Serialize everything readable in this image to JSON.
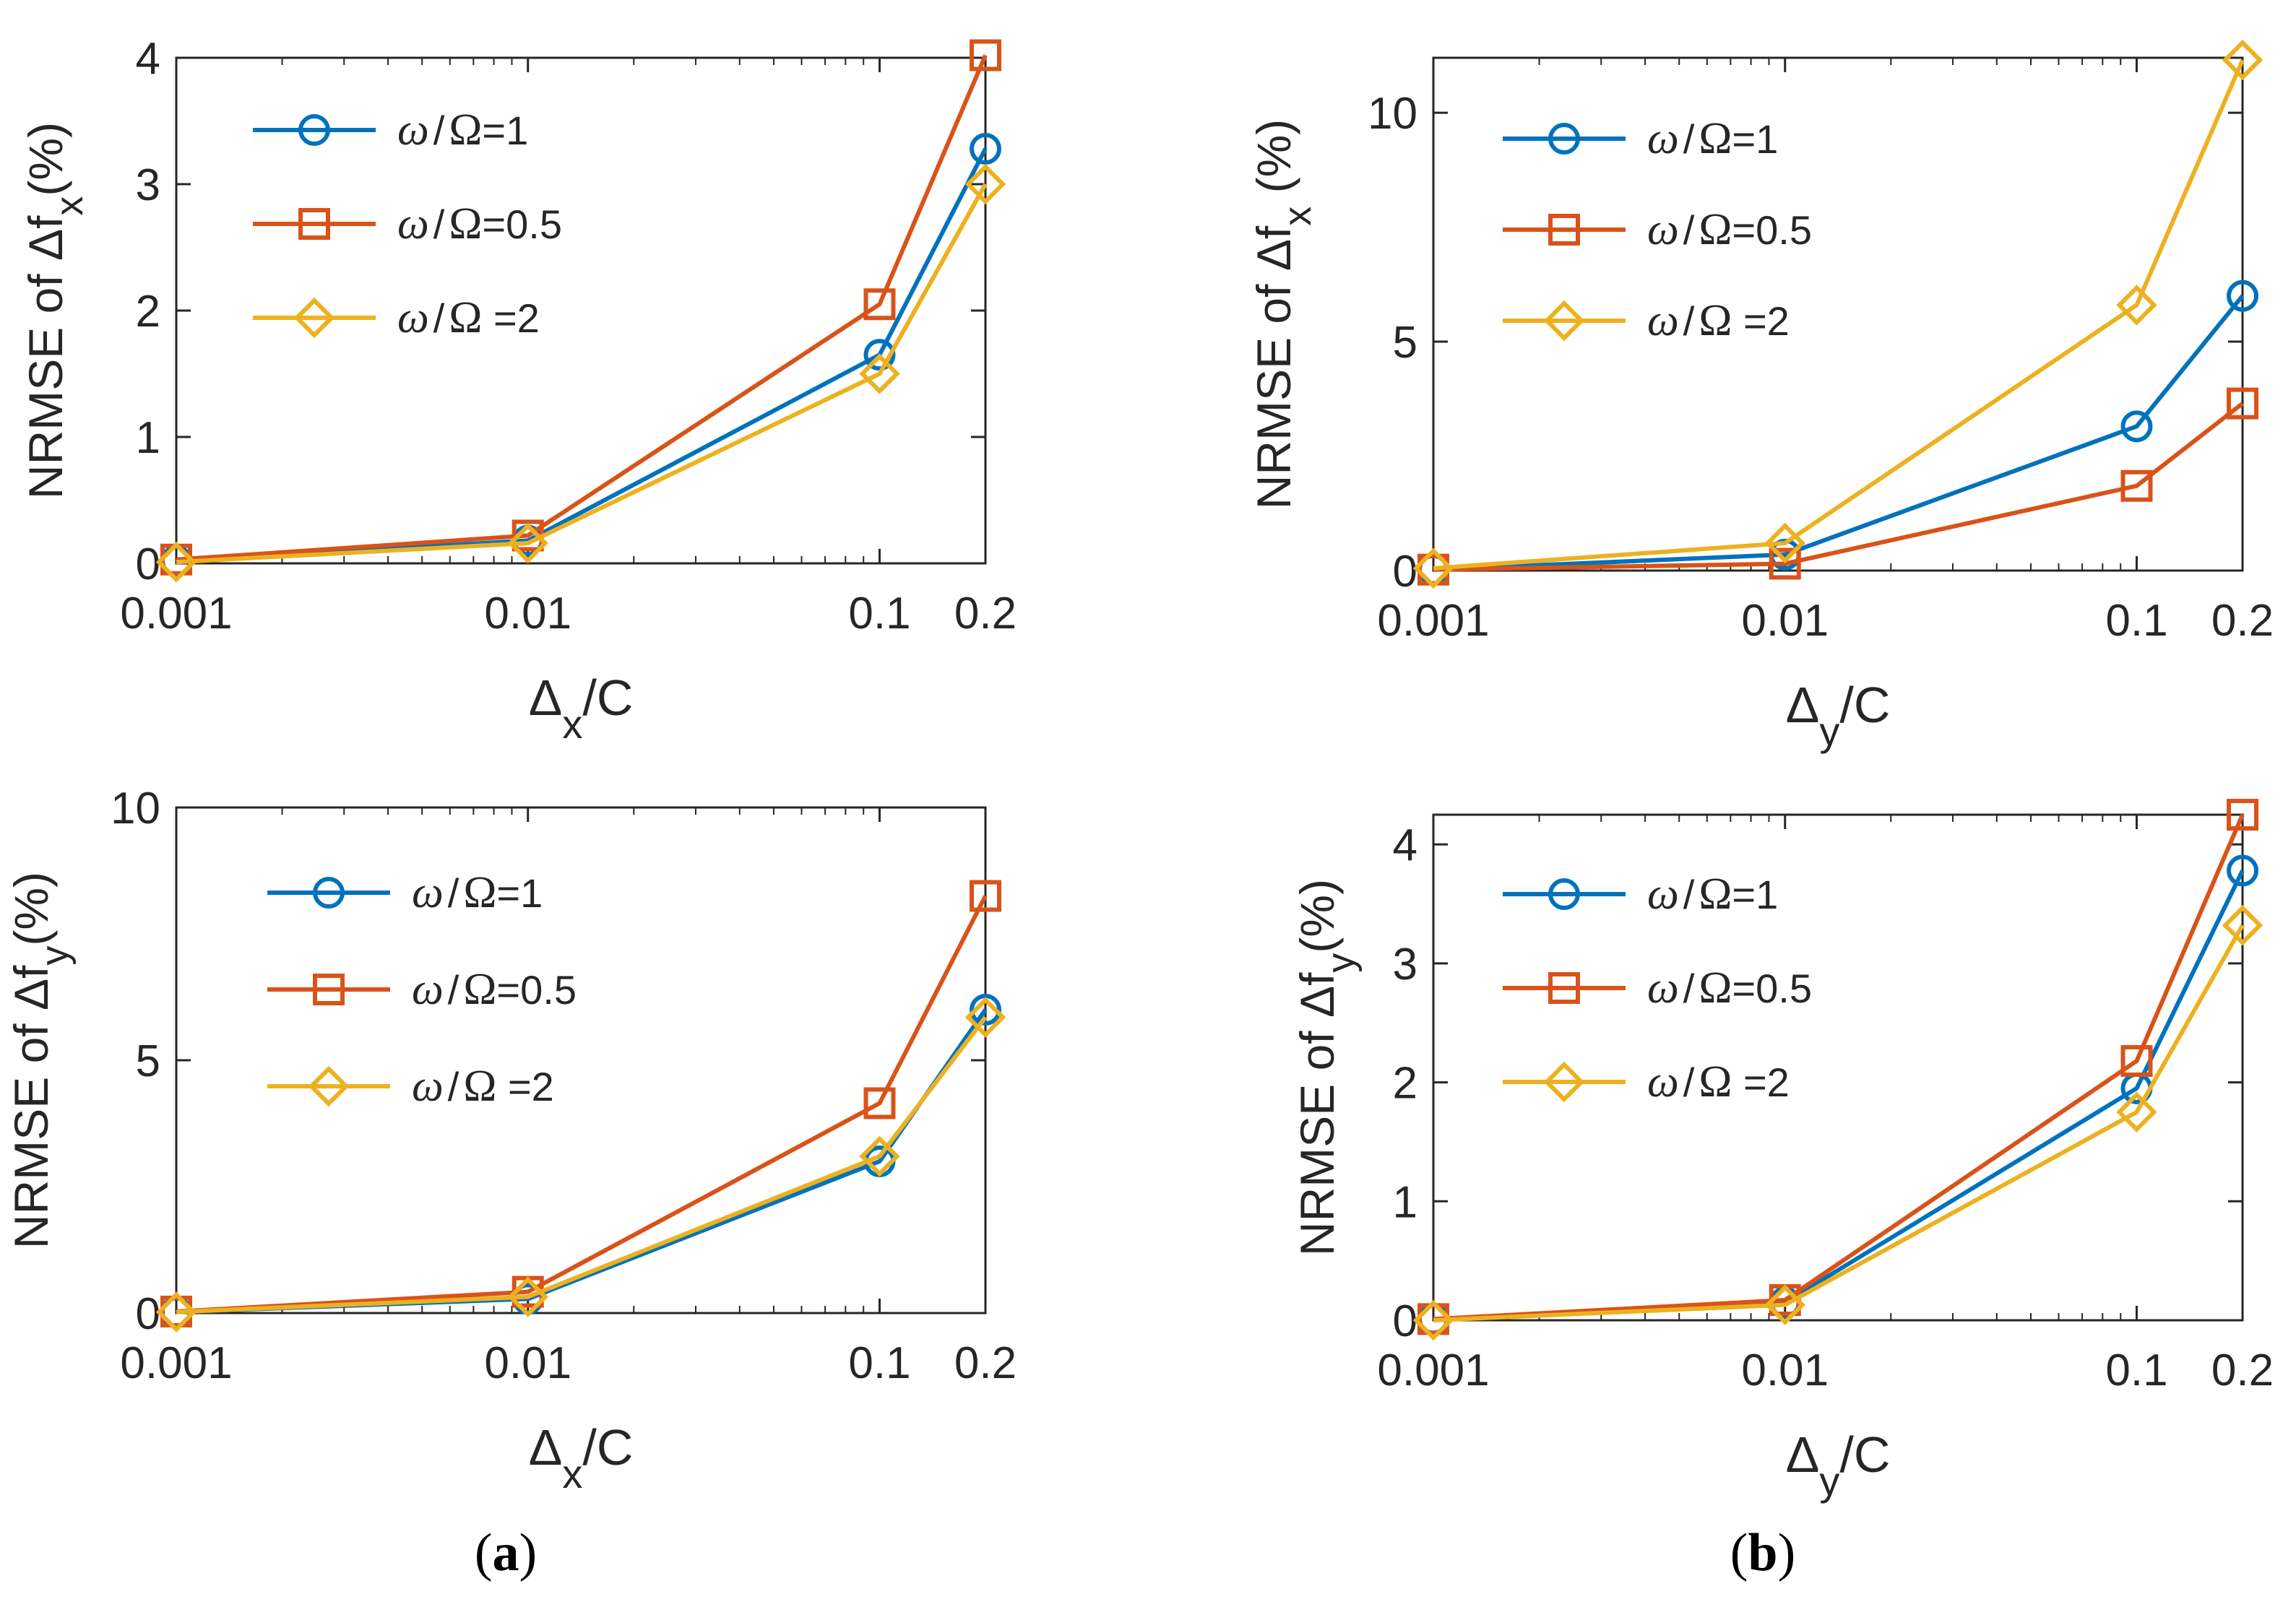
{
  "colors": {
    "blue": "#0072BD",
    "orange": "#D95319",
    "yellow": "#EDB120",
    "axis": "#262626"
  },
  "captions": [
    {
      "open": "(",
      "letter": "a",
      "close": ")"
    },
    {
      "open": "(",
      "letter": "b",
      "close": ")"
    }
  ],
  "chart_data": [
    {
      "type": "line",
      "panel": "a-top",
      "xscale": "log",
      "xlim": [
        0.001,
        0.2
      ],
      "ylim": [
        0,
        4
      ],
      "xticks": [
        0.001,
        0.01,
        0.1,
        0.2
      ],
      "xtick_labels": [
        "0.001",
        "0.01",
        "0.1",
        "0.2"
      ],
      "yticks": [
        0,
        1,
        2,
        3,
        4
      ],
      "ytick_labels": [
        "0",
        "1",
        "2",
        "3",
        "4"
      ],
      "ylabel": {
        "main": "NRMSE of Δf",
        "sub": "x",
        "tail": "(%)"
      },
      "xlabel": {
        "main": "Δ",
        "sub": "x",
        "tail": "/C"
      },
      "legend_position": "top-left",
      "grid": false,
      "x": [
        0.001,
        0.01,
        0.1,
        0.2
      ],
      "series": [
        {
          "name": "ω/Ω=1",
          "legend": [
            "ω",
            "/",
            "Ω",
            "=1"
          ],
          "marker": "circle",
          "color": "blue",
          "values": [
            0.02,
            0.18,
            1.65,
            3.28
          ]
        },
        {
          "name": "ω/Ω=0.5",
          "legend": [
            "ω",
            "/",
            "Ω",
            "=0.5"
          ],
          "marker": "square",
          "color": "orange",
          "values": [
            0.03,
            0.22,
            2.05,
            4.02
          ]
        },
        {
          "name": "ω/Ω =2",
          "legend": [
            "ω",
            "/",
            "Ω",
            " =2"
          ],
          "marker": "diamond",
          "color": "yellow",
          "values": [
            0.01,
            0.16,
            1.5,
            3.0
          ]
        }
      ]
    },
    {
      "type": "line",
      "panel": "b-top",
      "xscale": "log",
      "xlim": [
        0.001,
        0.2
      ],
      "ylim": [
        0,
        11.2
      ],
      "xticks": [
        0.001,
        0.01,
        0.1,
        0.2
      ],
      "xtick_labels": [
        "0.001",
        "0.01",
        "0.1",
        "0.2"
      ],
      "yticks": [
        0,
        5,
        10
      ],
      "ytick_labels": [
        "0",
        "5",
        "10"
      ],
      "ylabel": {
        "main": "NRMSE of Δf",
        "sub": "x",
        "tail": " (%)"
      },
      "xlabel": {
        "main": "Δ",
        "sub": "y",
        "tail": "/C"
      },
      "legend_position": "top-left",
      "grid": false,
      "x": [
        0.001,
        0.01,
        0.1,
        0.2
      ],
      "series": [
        {
          "name": "ω/Ω=1",
          "legend": [
            "ω",
            "/",
            "Ω",
            "=1"
          ],
          "marker": "circle",
          "color": "blue",
          "values": [
            0.02,
            0.35,
            3.15,
            6.0
          ]
        },
        {
          "name": "ω/Ω=0.5",
          "legend": [
            "ω",
            "/",
            "Ω",
            "=0.5"
          ],
          "marker": "square",
          "color": "orange",
          "values": [
            0.02,
            0.15,
            1.85,
            3.65
          ]
        },
        {
          "name": "ω/Ω =2",
          "legend": [
            "ω",
            "/",
            "Ω",
            " =2"
          ],
          "marker": "diamond",
          "color": "yellow",
          "values": [
            0.05,
            0.6,
            5.8,
            11.15
          ]
        }
      ]
    },
    {
      "type": "line",
      "panel": "a-bottom",
      "xscale": "log",
      "xlim": [
        0.001,
        0.2
      ],
      "ylim": [
        0,
        10
      ],
      "xticks": [
        0.001,
        0.01,
        0.1,
        0.2
      ],
      "xtick_labels": [
        "0.001",
        "0.01",
        "0.1",
        "0.2"
      ],
      "yticks": [
        0,
        5,
        10
      ],
      "ytick_labels": [
        "0",
        "5",
        "10"
      ],
      "ylabel": {
        "main": "NRMSE of Δf",
        "sub": "y",
        "tail": "(%)"
      },
      "xlabel": {
        "main": "Δ",
        "sub": "x",
        "tail": "/C"
      },
      "legend_position": "top-left",
      "grid": false,
      "x": [
        0.001,
        0.01,
        0.1,
        0.2
      ],
      "series": [
        {
          "name": "ω/Ω=1",
          "legend": [
            "ω",
            "/",
            "Ω",
            "=1"
          ],
          "marker": "circle",
          "color": "blue",
          "values": [
            0.02,
            0.28,
            3.0,
            6.0
          ]
        },
        {
          "name": "ω/Ω=0.5",
          "legend": [
            "ω",
            "/",
            "Ω",
            "=0.5"
          ],
          "marker": "square",
          "color": "orange",
          "values": [
            0.03,
            0.42,
            4.15,
            8.25
          ]
        },
        {
          "name": "ω/Ω =2",
          "legend": [
            "ω",
            "/",
            "Ω",
            " =2"
          ],
          "marker": "diamond",
          "color": "yellow",
          "values": [
            0.02,
            0.32,
            3.1,
            5.85
          ]
        }
      ]
    },
    {
      "type": "line",
      "panel": "b-bottom",
      "xscale": "log",
      "xlim": [
        0.001,
        0.2
      ],
      "ylim": [
        0,
        4.25
      ],
      "xticks": [
        0.001,
        0.01,
        0.1,
        0.2
      ],
      "xtick_labels": [
        "0.001",
        "0.01",
        "0.1",
        "0.2"
      ],
      "yticks": [
        0,
        1,
        2,
        3,
        4
      ],
      "ytick_labels": [
        "0",
        "1",
        "2",
        "3",
        "4"
      ],
      "ylabel": {
        "main": "NRMSE of Δf",
        "sub": "y",
        "tail": "(%)"
      },
      "xlabel": {
        "main": "Δ",
        "sub": "y",
        "tail": "/C"
      },
      "legend_position": "top-left",
      "grid": false,
      "x": [
        0.001,
        0.01,
        0.1,
        0.2
      ],
      "series": [
        {
          "name": "ω/Ω=1",
          "legend": [
            "ω",
            "/",
            "Ω",
            "=1"
          ],
          "marker": "circle",
          "color": "blue",
          "values": [
            0.01,
            0.15,
            1.95,
            3.78
          ]
        },
        {
          "name": "ω/Ω=0.5",
          "legend": [
            "ω",
            "/",
            "Ω",
            "=0.5"
          ],
          "marker": "square",
          "color": "orange",
          "values": [
            0.01,
            0.17,
            2.18,
            4.25
          ]
        },
        {
          "name": "ω/Ω =2",
          "legend": [
            "ω",
            "/",
            "Ω",
            " =2"
          ],
          "marker": "diamond",
          "color": "yellow",
          "values": [
            0.0,
            0.13,
            1.75,
            3.32
          ]
        }
      ]
    }
  ]
}
